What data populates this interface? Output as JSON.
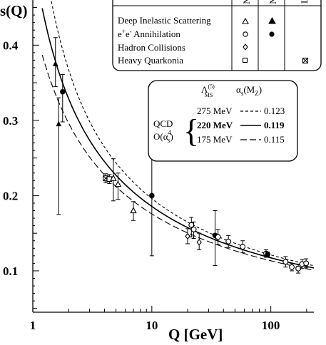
{
  "chart_data": {
    "type": "scatter",
    "x_axis": {
      "label": "Q [GeV]",
      "scale": "log",
      "range": [
        1,
        230
      ],
      "tick_labels": [
        "1",
        "10",
        "100"
      ],
      "tick_values": [
        1,
        10,
        100
      ]
    },
    "y_axis": {
      "label": "αs(Q)",
      "label_visible": "s(Q)",
      "range": [
        0.045,
        0.46
      ],
      "tick_labels": [
        "0.1",
        "0.2",
        "0.3",
        "0.4"
      ],
      "tick_values": [
        0.1,
        0.2,
        0.3,
        0.4
      ]
    },
    "legend": {
      "position": "top-right",
      "column_header_marks": [
        "N",
        "N",
        "L"
      ],
      "rows": [
        {
          "label": "Deep Inelastic Scattering",
          "markers": [
            "open-triangle",
            "filled-triangle"
          ]
        },
        {
          "label": "e+e- Annihilation",
          "label_main": "e",
          "label_sup1": "+",
          "label_mid": "e",
          "label_sup2": "-",
          "label_end": " Annihilation",
          "markers": [
            "open-circle",
            "filled-circle"
          ]
        },
        {
          "label": "Hadron Collisions",
          "markers": [
            "open-diamond"
          ]
        },
        {
          "label": "Heavy Quarkonia",
          "markers": [
            "open-square",
            "crossed-square"
          ]
        }
      ]
    },
    "qcd_inset": {
      "header_lambda": "Λ",
      "header_lambda_sup": "(5)",
      "header_lambda_sub": "MS",
      "header_alpha": "α",
      "header_alpha_sub": "s",
      "header_alpha_arg": "(M",
      "header_alpha_arg_sub": "Z",
      "header_alpha_close": ")",
      "label_qcd": "QCD",
      "label_order": "O(α",
      "label_order_sub": "s",
      "label_order_sup": "4",
      "label_order_close": ")",
      "rows": [
        {
          "lambda": "275 MeV",
          "alpha": "0.123",
          "line": "dashed",
          "bold": false
        },
        {
          "lambda": "220 MeV",
          "alpha": "0.119",
          "line": "solid",
          "bold": true
        },
        {
          "lambda": "175 MeV",
          "alpha": "0.115",
          "line": "long-dashed",
          "bold": false
        }
      ]
    },
    "curves": [
      {
        "lambda_mev": 275,
        "alpha_mz": 0.123,
        "style": "dashed"
      },
      {
        "lambda_mev": 220,
        "alpha_mz": 0.119,
        "style": "solid"
      },
      {
        "lambda_mev": 175,
        "alpha_mz": 0.115,
        "style": "long-dashed"
      }
    ],
    "points": [
      {
        "x": 1.55,
        "y": 0.375,
        "yerr_lo": 0.03,
        "yerr_hi": 0.035,
        "marker": "filled-triangle"
      },
      {
        "x": 1.65,
        "y": 0.295,
        "yerr_lo": 0.12,
        "yerr_hi": 0.035,
        "marker": "filled-triangle"
      },
      {
        "x": 1.78,
        "y": 0.338,
        "yerr_lo": 0.04,
        "yerr_hi": 0.023,
        "marker": "filled-circle"
      },
      {
        "x": 4.1,
        "y": 0.223,
        "yerr_lo": 0.006,
        "yerr_hi": 0.006,
        "marker": "crossed-square"
      },
      {
        "x": 4.4,
        "y": 0.222,
        "yerr_lo": 0.006,
        "yerr_hi": 0.006,
        "marker": "open-square"
      },
      {
        "x": 4.75,
        "y": 0.223,
        "yerr_lo": 0.03,
        "yerr_hi": 0.026,
        "marker": "open-triangle"
      },
      {
        "x": 5.2,
        "y": 0.215,
        "yerr_lo": 0.02,
        "yerr_hi": 0.015,
        "marker": "open-triangle"
      },
      {
        "x": 7.0,
        "y": 0.18,
        "yerr_lo": 0.013,
        "yerr_hi": 0.012,
        "marker": "open-triangle"
      },
      {
        "x": 10.0,
        "y": 0.2,
        "yerr_lo": 0.08,
        "yerr_hi": 0.06,
        "marker": "filled-circle"
      },
      {
        "x": 20.0,
        "y": 0.146,
        "yerr_lo": 0.01,
        "yerr_hi": 0.01,
        "marker": "open-diamond"
      },
      {
        "x": 21.5,
        "y": 0.161,
        "yerr_lo": 0.016,
        "yerr_hi": 0.01,
        "marker": "open-circle"
      },
      {
        "x": 22.5,
        "y": 0.155,
        "yerr_lo": 0.012,
        "yerr_hi": 0.01,
        "marker": "open-circle"
      },
      {
        "x": 25.0,
        "y": 0.138,
        "yerr_lo": 0.01,
        "yerr_hi": 0.012,
        "marker": "open-diamond"
      },
      {
        "x": 34.0,
        "y": 0.147,
        "yerr_lo": 0.04,
        "yerr_hi": 0.033,
        "marker": "filled-circle"
      },
      {
        "x": 36.0,
        "y": 0.145,
        "yerr_lo": 0.01,
        "yerr_hi": 0.01,
        "marker": "open-circle"
      },
      {
        "x": 44.0,
        "y": 0.139,
        "yerr_lo": 0.008,
        "yerr_hi": 0.008,
        "marker": "open-circle"
      },
      {
        "x": 58.0,
        "y": 0.132,
        "yerr_lo": 0.008,
        "yerr_hi": 0.008,
        "marker": "open-circle"
      },
      {
        "x": 91.2,
        "y": 0.123,
        "yerr_lo": 0.005,
        "yerr_hi": 0.005,
        "marker": "open-circle"
      },
      {
        "x": 94.0,
        "y": 0.122,
        "yerr_lo": 0.003,
        "yerr_hi": 0.003,
        "marker": "filled-circle"
      },
      {
        "x": 133.0,
        "y": 0.112,
        "yerr_lo": 0.007,
        "yerr_hi": 0.007,
        "marker": "open-circle"
      },
      {
        "x": 150.0,
        "y": 0.105,
        "yerr_lo": 0.005,
        "yerr_hi": 0.005,
        "marker": "open-circle"
      },
      {
        "x": 170.0,
        "y": 0.103,
        "yerr_lo": 0.006,
        "yerr_hi": 0.006,
        "marker": "open-circle"
      },
      {
        "x": 183.0,
        "y": 0.109,
        "yerr_lo": 0.006,
        "yerr_hi": 0.006,
        "marker": "open-circle"
      },
      {
        "x": 198.0,
        "y": 0.11,
        "yerr_lo": 0.006,
        "yerr_hi": 0.006,
        "marker": "open-circle"
      }
    ]
  }
}
